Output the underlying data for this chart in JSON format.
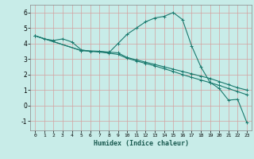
{
  "title": "",
  "xlabel": "Humidex (Indice chaleur)",
  "ylabel": "",
  "bg_color": "#c8ece8",
  "grid_color_v": "#d4a0a0",
  "grid_color_h": "#d4a0a0",
  "line_color": "#1a7a6e",
  "xlim": [
    -0.5,
    23.5
  ],
  "ylim": [
    -1.6,
    6.5
  ],
  "xticks": [
    0,
    1,
    2,
    3,
    4,
    5,
    6,
    7,
    8,
    9,
    10,
    11,
    12,
    13,
    14,
    15,
    16,
    17,
    18,
    19,
    20,
    21,
    22,
    23
  ],
  "yticks": [
    -1,
    0,
    1,
    2,
    3,
    4,
    5,
    6
  ],
  "line1_x": [
    0,
    1,
    2,
    3,
    4,
    5,
    6,
    7,
    8,
    9,
    10,
    11,
    12,
    13,
    14,
    15,
    16,
    17,
    18,
    19,
    20,
    21,
    22,
    23
  ],
  "line1_y": [
    4.5,
    4.3,
    4.2,
    4.3,
    4.1,
    3.6,
    3.5,
    3.5,
    3.4,
    4.0,
    4.6,
    5.0,
    5.4,
    5.65,
    5.75,
    6.0,
    5.55,
    3.85,
    2.5,
    1.5,
    1.1,
    0.35,
    0.4,
    -1.1
  ],
  "line2_x": [
    0,
    5,
    7,
    8,
    9,
    10,
    11,
    12,
    13,
    14,
    15,
    16,
    17,
    18,
    19,
    20,
    21,
    22,
    23
  ],
  "line2_y": [
    4.5,
    3.55,
    3.5,
    3.45,
    3.4,
    3.1,
    2.95,
    2.8,
    2.65,
    2.5,
    2.35,
    2.2,
    2.05,
    1.9,
    1.75,
    1.55,
    1.35,
    1.15,
    1.0
  ],
  "line3_x": [
    0,
    5,
    7,
    8,
    9,
    10,
    11,
    12,
    13,
    14,
    15,
    16,
    17,
    18,
    19,
    20,
    21,
    22,
    23
  ],
  "line3_y": [
    4.5,
    3.55,
    3.45,
    3.38,
    3.3,
    3.05,
    2.88,
    2.72,
    2.56,
    2.38,
    2.2,
    2.0,
    1.82,
    1.65,
    1.48,
    1.3,
    1.1,
    0.9,
    0.7
  ]
}
